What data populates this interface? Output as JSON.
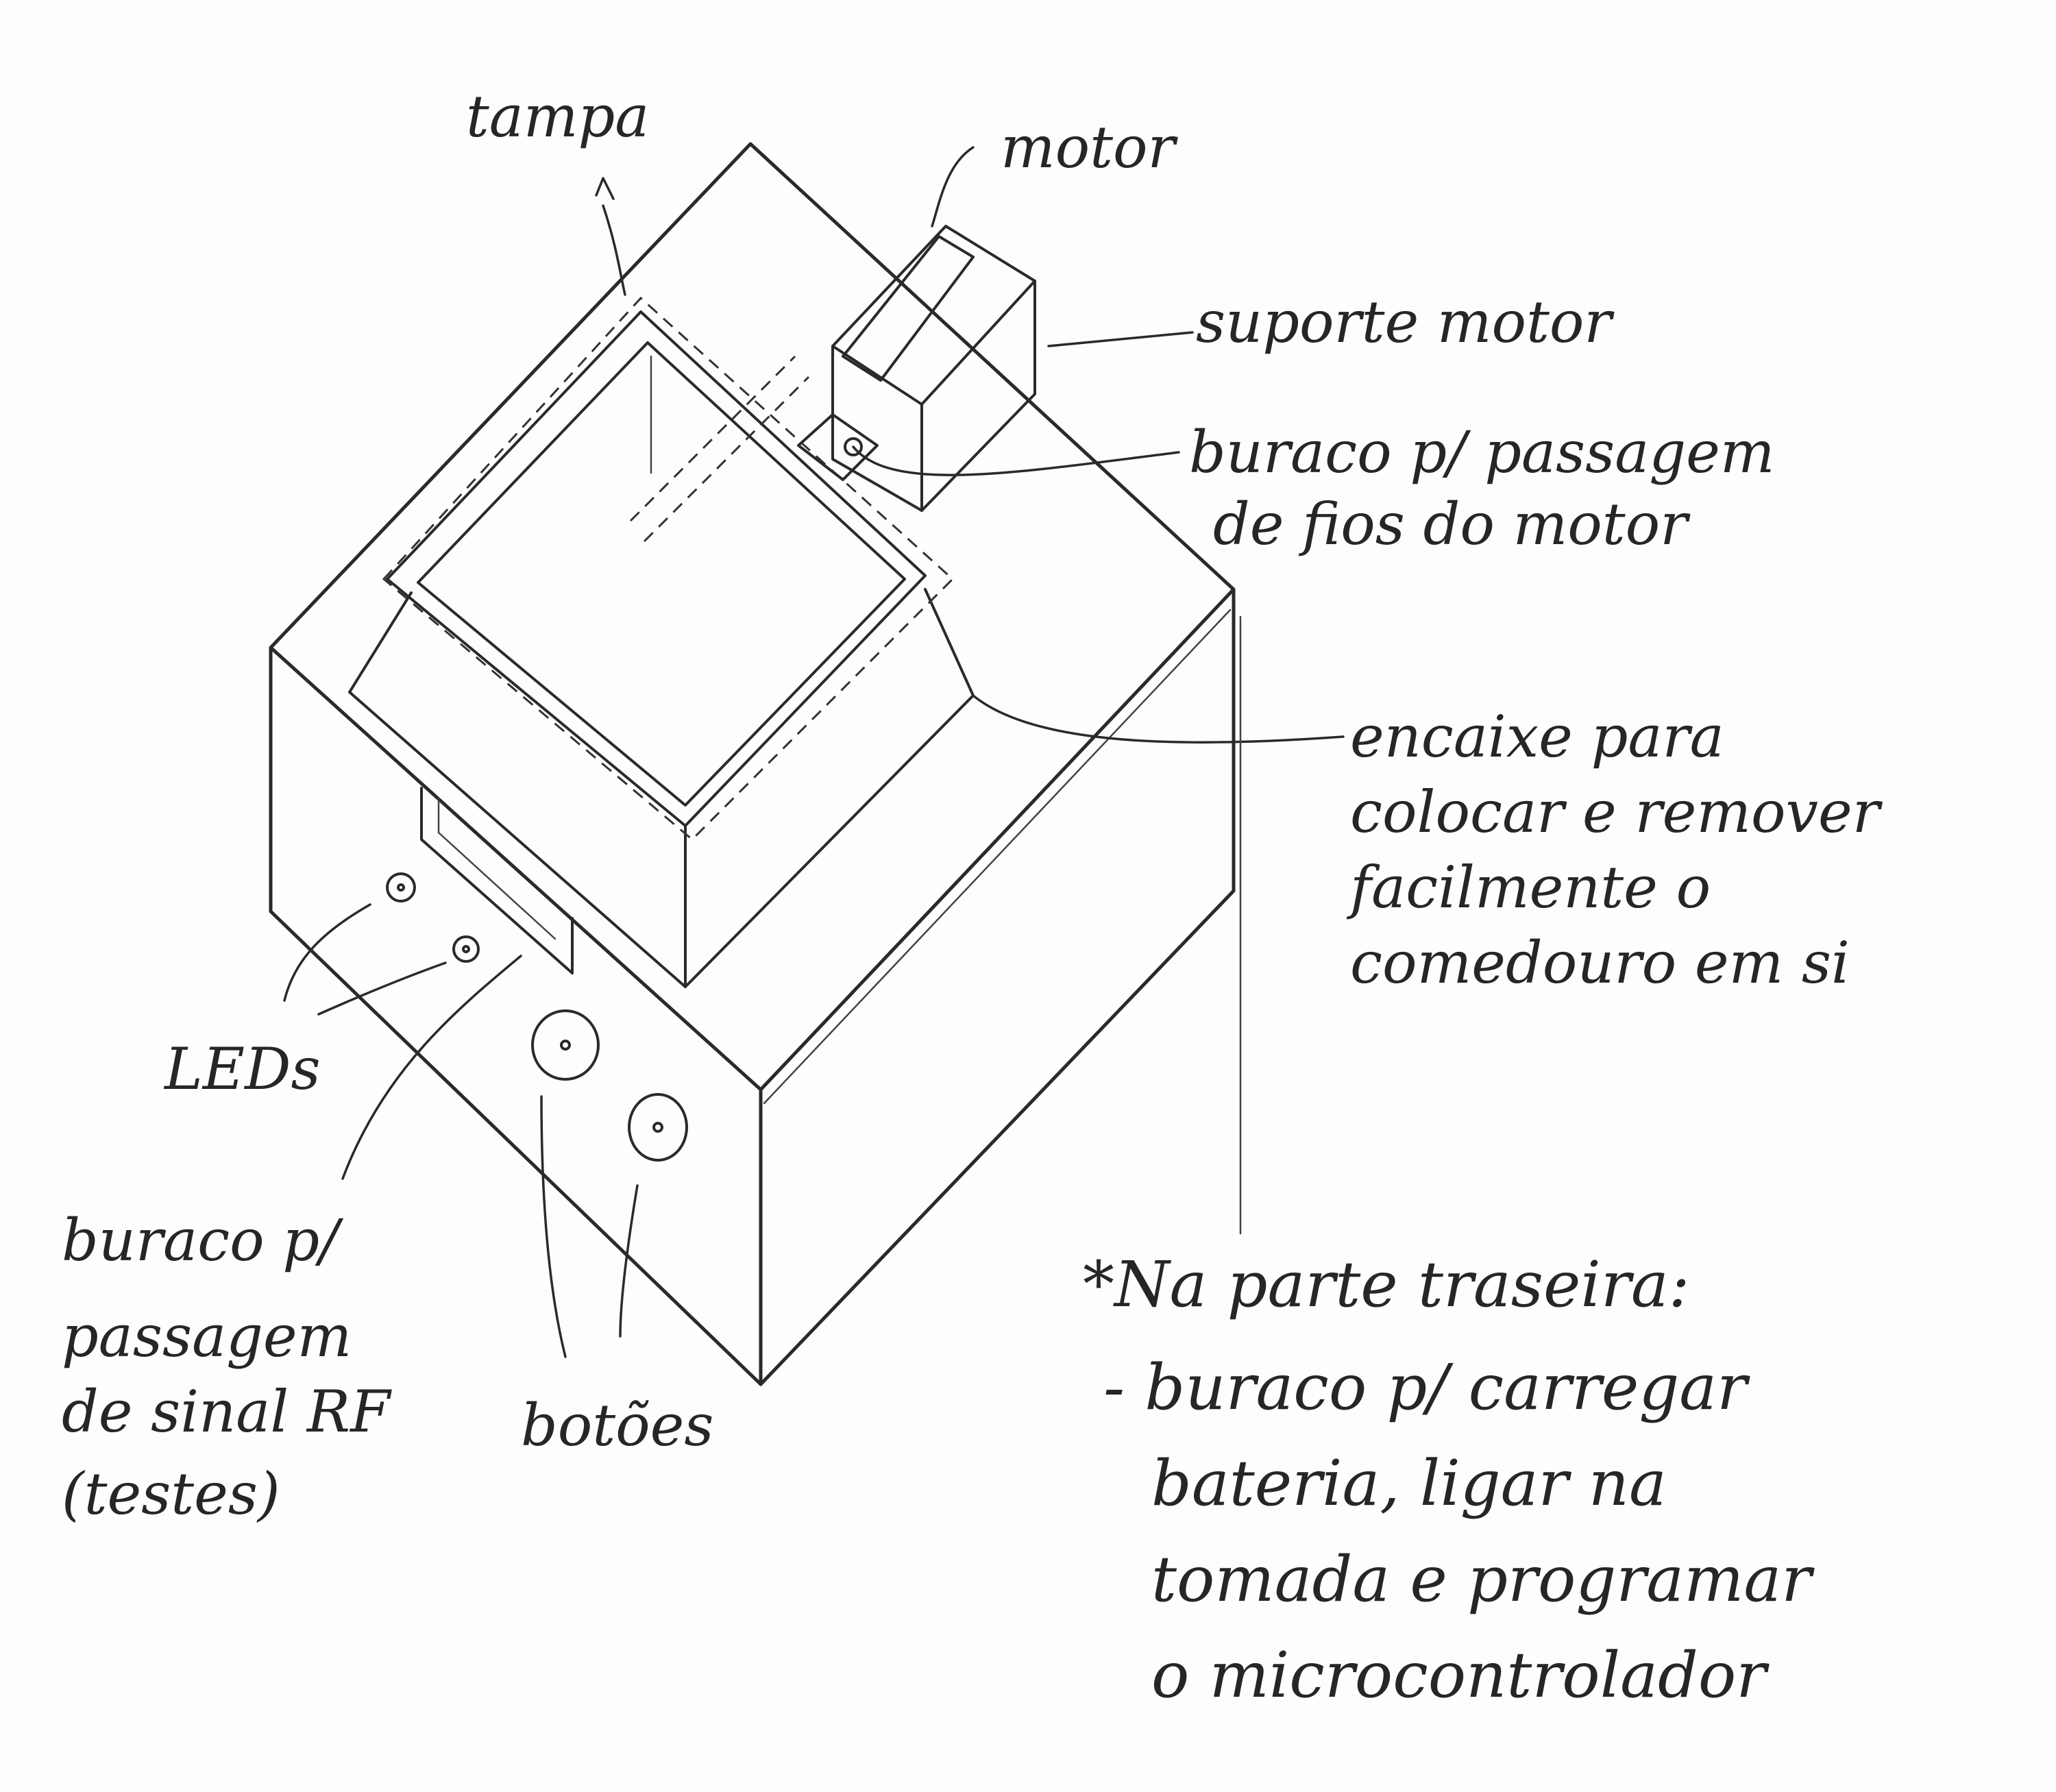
{
  "labels": {
    "tampa": "tampa",
    "motor": "motor",
    "suporte_motor": "suporte motor",
    "buraco_fios": [
      "buraco p/ passagem",
      "de fios do motor"
    ],
    "encaixe": [
      "encaixe para",
      "colocar e remover",
      "facilmente o",
      "comedouro em si"
    ],
    "leds": "LEDs",
    "buraco_rf": [
      "buraco p/",
      "passagem",
      "de sinal RF",
      "(testes)"
    ],
    "botoes": "botões"
  },
  "note": {
    "heading": "*Na parte traseira:",
    "lines": [
      "- buraco p/ carregar",
      "bateria, ligar na",
      "tomada e programar",
      "o microcontrolador"
    ]
  }
}
